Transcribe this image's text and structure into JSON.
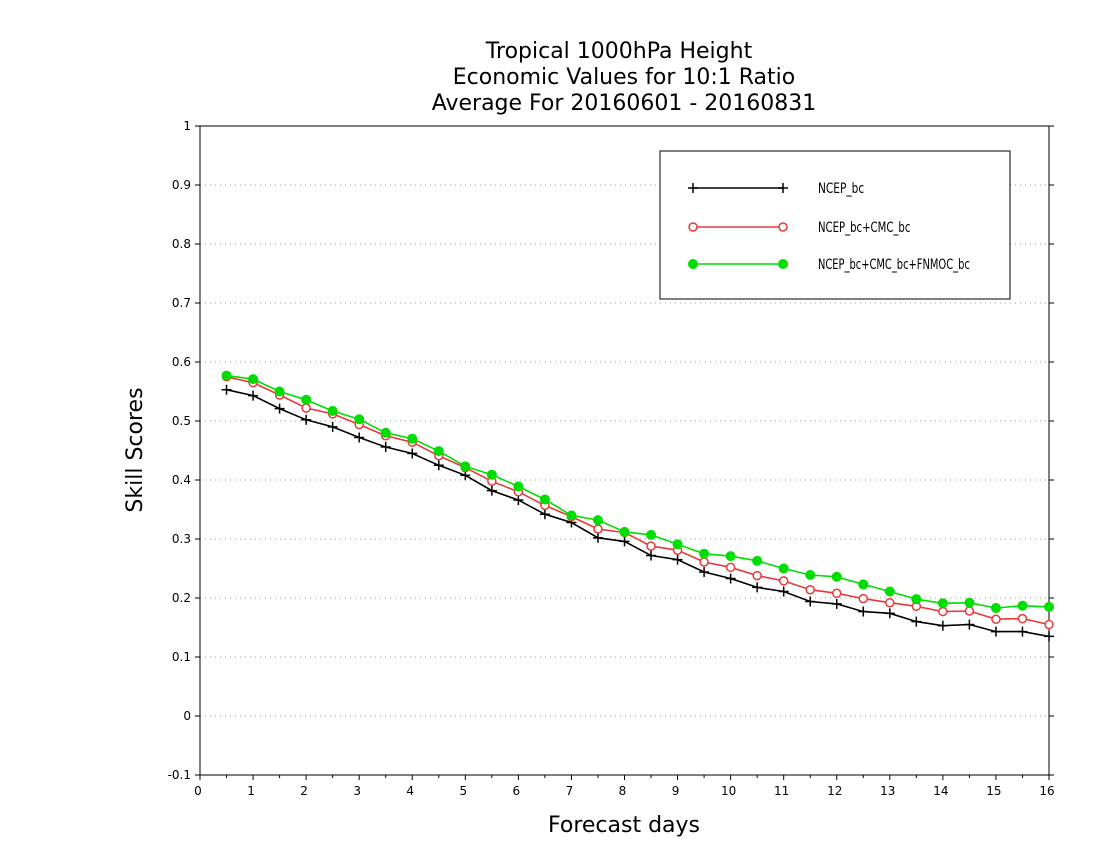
{
  "chart_data": {
    "type": "line",
    "title_lines": [
      "Tropical 1000hPa Height",
      "Economic Values for 10:1 Ratio",
      "Average For 20160601 - 20160831"
    ],
    "xlabel": "Forecast days",
    "ylabel": "Skill Scores",
    "xlim": [
      0,
      16
    ],
    "ylim": [
      -0.1,
      1
    ],
    "x_ticks": [
      0,
      1,
      2,
      3,
      4,
      5,
      6,
      7,
      8,
      9,
      10,
      11,
      12,
      13,
      14,
      15,
      16
    ],
    "y_ticks": [
      -0.1,
      0,
      0.1,
      0.2,
      0.3,
      0.4,
      0.5,
      0.6,
      0.7,
      0.8,
      0.9,
      1
    ],
    "y_tick_labels": [
      "-0.1",
      "0",
      "0.1",
      "0.2",
      "0.3",
      "0.4",
      "0.5",
      "0.6",
      "0.7",
      "0.8",
      "0.9",
      "1"
    ],
    "grid": "horizontal dotted",
    "legend_position": "top-right",
    "x": [
      0.5,
      1,
      1.5,
      2,
      2.5,
      3,
      3.5,
      4,
      4.5,
      5,
      5.5,
      6,
      6.5,
      7,
      7.5,
      8,
      8.5,
      9,
      9.5,
      10,
      10.5,
      11,
      11.5,
      12,
      12.5,
      13,
      13.5,
      14,
      14.5,
      15,
      15.5,
      16
    ],
    "series": [
      {
        "name": "NCEP_bc",
        "color": "#000000",
        "marker": "plus",
        "values": [
          0.553,
          0.543,
          0.521,
          0.502,
          0.49,
          0.472,
          0.456,
          0.445,
          0.425,
          0.408,
          0.382,
          0.366,
          0.342,
          0.328,
          0.302,
          0.296,
          0.272,
          0.265,
          0.244,
          0.233,
          0.218,
          0.211,
          0.194,
          0.19,
          0.177,
          0.174,
          0.16,
          0.153,
          0.155,
          0.143,
          0.143,
          0.135
        ]
      },
      {
        "name": "NCEP_bc+CMC_bc",
        "color": "#e8383a",
        "marker": "open-circle",
        "values": [
          0.575,
          0.565,
          0.544,
          0.522,
          0.512,
          0.494,
          0.475,
          0.464,
          0.441,
          0.421,
          0.398,
          0.38,
          0.357,
          0.338,
          0.317,
          0.311,
          0.288,
          0.281,
          0.261,
          0.252,
          0.238,
          0.229,
          0.214,
          0.208,
          0.199,
          0.192,
          0.186,
          0.177,
          0.178,
          0.164,
          0.165,
          0.155
        ]
      },
      {
        "name": "NCEP_bc+CMC_bc+FNMOC_bc",
        "color": "#00dd00",
        "marker": "filled-circle",
        "values": [
          0.577,
          0.571,
          0.55,
          0.536,
          0.517,
          0.503,
          0.48,
          0.47,
          0.449,
          0.423,
          0.409,
          0.389,
          0.367,
          0.34,
          0.332,
          0.312,
          0.307,
          0.291,
          0.275,
          0.271,
          0.263,
          0.25,
          0.239,
          0.236,
          0.223,
          0.211,
          0.198,
          0.191,
          0.192,
          0.183,
          0.187,
          0.185
        ]
      }
    ]
  }
}
